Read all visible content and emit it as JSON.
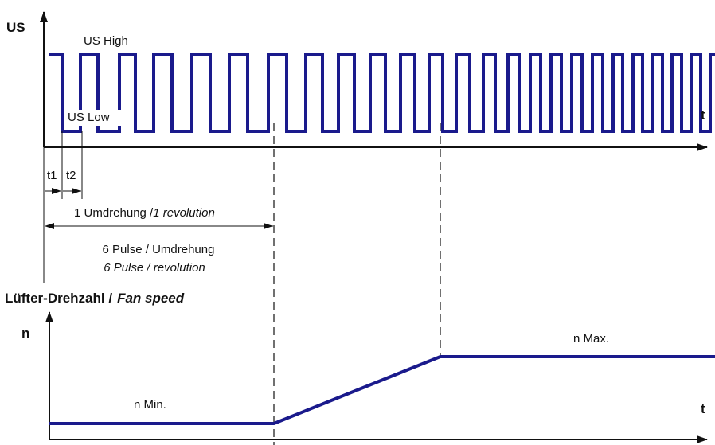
{
  "top_chart": {
    "y_axis_label": "US",
    "x_axis_label": "t",
    "high_label": "US High",
    "low_label": "US Low",
    "t1_label": "t1",
    "t2_label": "t2",
    "revolution_label_de": "1 Umdrehung /",
    "revolution_label_en": "1 revolution",
    "pulses_label_de": "6 Pulse / Umdrehung",
    "pulses_label_en": "6 Pulse / revolution",
    "signal_levels": [
      "high",
      "low"
    ],
    "signal_color": "#1a1a8c"
  },
  "bottom_chart": {
    "title_de": "Lüfter-Drehzahl /",
    "title_en": "Fan speed",
    "y_axis_label": "n",
    "x_axis_label": "t",
    "min_label": "n Min.",
    "max_label": "n Max.",
    "curve_color": "#1a1a8c"
  },
  "colors": {
    "signal": "#1a1a8c",
    "axis": "#111111"
  }
}
